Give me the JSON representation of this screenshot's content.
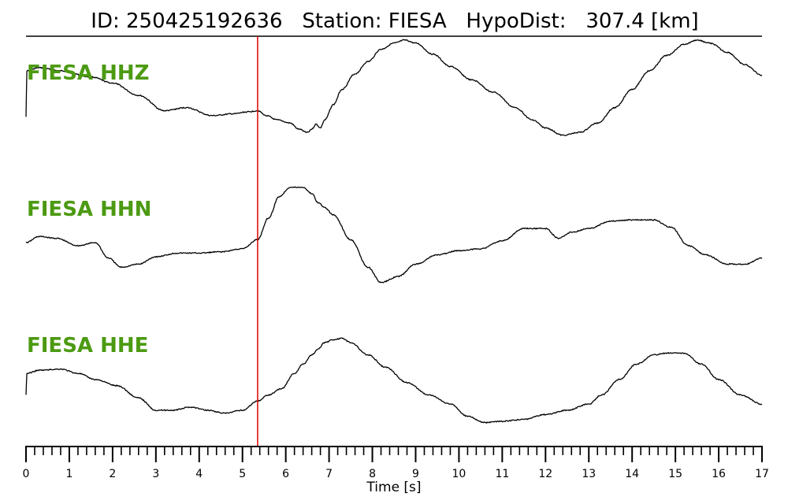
{
  "title": {
    "id_label": "ID:",
    "id_value": "250425192636",
    "station_label": "Station:",
    "station_value": "FIESA",
    "dist_label": "HypoDist:",
    "dist_value": "307.4",
    "dist_unit": "[km]"
  },
  "colors": {
    "label": "#4c9a12",
    "pick_line": "#e00000",
    "trace": "#000000"
  },
  "chart_data": {
    "type": "line",
    "xlabel": "Time [s]",
    "xlim": [
      0,
      17
    ],
    "x_ticks": [
      "0",
      "1",
      "2",
      "3",
      "4",
      "5",
      "6",
      "7",
      "8",
      "9",
      "10",
      "11",
      "12",
      "13",
      "14",
      "15",
      "16",
      "17"
    ],
    "minor_tick_step": 0.2,
    "pick_time": 5.35,
    "series": [
      {
        "name": "FIESA HHZ",
        "x": [
          0,
          0.02,
          0.3,
          0.8,
          1.5,
          2.0,
          2.6,
          3.2,
          3.7,
          4.3,
          4.8,
          5.1,
          5.35,
          5.55,
          5.8,
          6.1,
          6.3,
          6.5,
          6.6,
          6.7,
          6.8,
          6.9,
          7.1,
          7.3,
          7.6,
          7.9,
          8.2,
          8.5,
          8.75,
          9.0,
          9.4,
          9.8,
          10.3,
          10.8,
          11.3,
          11.7,
          12.0,
          12.4,
          12.8,
          13.2,
          13.6,
          14.0,
          14.4,
          14.8,
          15.2,
          15.5,
          15.8,
          16.2,
          16.6,
          17.0
        ],
        "y": [
          -0.3,
          0.45,
          0.5,
          0.45,
          0.35,
          0.25,
          0.05,
          -0.2,
          -0.15,
          -0.28,
          -0.25,
          -0.22,
          -0.2,
          -0.28,
          -0.35,
          -0.4,
          -0.5,
          -0.55,
          -0.5,
          -0.42,
          -0.48,
          -0.35,
          -0.1,
          0.15,
          0.4,
          0.6,
          0.8,
          0.9,
          0.95,
          0.9,
          0.72,
          0.52,
          0.3,
          0.1,
          -0.15,
          -0.35,
          -0.48,
          -0.6,
          -0.55,
          -0.4,
          -0.15,
          0.15,
          0.45,
          0.7,
          0.88,
          0.95,
          0.9,
          0.75,
          0.55,
          0.38
        ]
      },
      {
        "name": "FIESA HHN",
        "x": [
          0,
          0.3,
          0.7,
          1.2,
          1.6,
          1.9,
          2.2,
          2.6,
          3.0,
          3.5,
          4.0,
          4.5,
          5.0,
          5.35,
          5.6,
          5.85,
          6.1,
          6.4,
          6.6,
          6.75,
          6.9,
          7.1,
          7.5,
          7.9,
          8.2,
          8.6,
          9.0,
          9.5,
          10.0,
          10.5,
          11.0,
          11.5,
          12.0,
          12.3,
          12.6,
          13.0,
          13.5,
          14.0,
          14.5,
          14.9,
          15.3,
          15.7,
          16.2,
          16.6,
          17.0
        ],
        "y": [
          0.05,
          0.15,
          0.12,
          0.0,
          0.05,
          -0.2,
          -0.35,
          -0.3,
          -0.18,
          -0.12,
          -0.12,
          -0.1,
          -0.05,
          0.1,
          0.45,
          0.8,
          0.95,
          0.95,
          0.85,
          0.7,
          0.62,
          0.5,
          0.1,
          -0.35,
          -0.6,
          -0.5,
          -0.3,
          -0.15,
          -0.08,
          -0.05,
          0.08,
          0.28,
          0.28,
          0.12,
          0.22,
          0.28,
          0.4,
          0.42,
          0.42,
          0.3,
          0.0,
          -0.15,
          -0.3,
          -0.3,
          -0.2
        ]
      },
      {
        "name": "FIESA HHE",
        "x": [
          0,
          0.02,
          0.3,
          0.8,
          1.2,
          1.6,
          2.1,
          2.6,
          3.0,
          3.4,
          3.8,
          4.2,
          4.6,
          5.0,
          5.35,
          5.6,
          5.9,
          6.2,
          6.4,
          6.6,
          6.75,
          6.9,
          7.1,
          7.3,
          7.5,
          7.9,
          8.3,
          8.8,
          9.3,
          9.8,
          10.2,
          10.6,
          11.0,
          11.5,
          12.0,
          12.5,
          13.0,
          13.3,
          13.7,
          14.1,
          14.5,
          14.8,
          15.2,
          15.6,
          16.0,
          16.5,
          17.0
        ],
        "y": [
          -0.3,
          0.05,
          0.1,
          0.12,
          0.05,
          -0.05,
          -0.15,
          -0.35,
          -0.55,
          -0.55,
          -0.5,
          -0.55,
          -0.6,
          -0.55,
          -0.4,
          -0.3,
          -0.2,
          0.05,
          0.2,
          0.35,
          0.45,
          0.55,
          0.6,
          0.62,
          0.55,
          0.35,
          0.15,
          -0.1,
          -0.3,
          -0.45,
          -0.65,
          -0.75,
          -0.73,
          -0.7,
          -0.62,
          -0.55,
          -0.45,
          -0.3,
          -0.05,
          0.2,
          0.35,
          0.38,
          0.38,
          0.2,
          -0.05,
          -0.3,
          -0.45
        ]
      }
    ]
  }
}
